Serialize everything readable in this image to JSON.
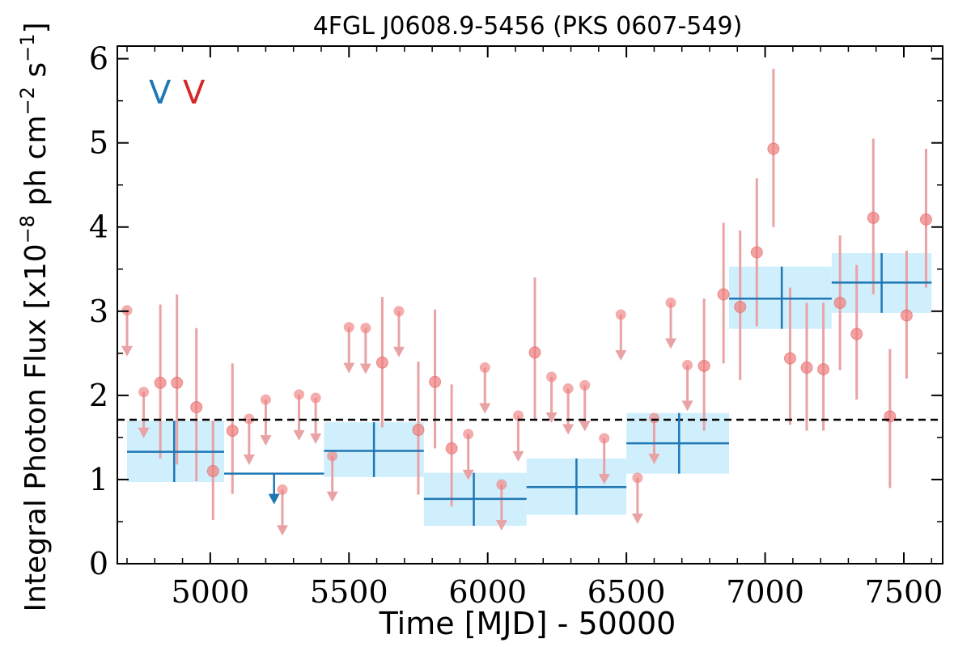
{
  "chart_data": {
    "type": "scatter",
    "title": "4FGL J0608.9-5456 (PKS 0607-549)",
    "xlabel": "Time [MJD] - 50000",
    "ylabel": "Integral Photon Flux [x10",
    "ylabel_exp": "−8",
    "ylabel_unit": " ph cm",
    "ylabel_exp2": "−2",
    "ylabel_unit2": " s",
    "ylabel_exp3": "−1",
    "ylabel_close": "]",
    "xlim": [
      4665,
      7640
    ],
    "ylim": [
      0,
      6.15
    ],
    "x_ticks": [
      5000,
      5500,
      6000,
      6500,
      7000,
      7500
    ],
    "y_ticks": [
      0,
      1,
      2,
      3,
      4,
      5,
      6
    ],
    "x_tick_labels": [
      "5000",
      "5500",
      "6000",
      "6500",
      "7000",
      "7500"
    ],
    "y_tick_labels": [
      "0",
      "1",
      "2",
      "3",
      "4",
      "5",
      "6"
    ],
    "grid": false,
    "legend_markers": [
      {
        "text": "V",
        "color": "#1f77b4"
      },
      {
        "text": "V",
        "color": "#d62728"
      }
    ],
    "mean_flux": 1.71,
    "colors": {
      "long_bins": "#1f77b4",
      "long_band": "#cdeefc",
      "short_bins": "#f08080",
      "short_bars": "#e9a3a5"
    },
    "series": [
      {
        "bins": [
          {
            "x": 4870,
            "x0": 4700,
            "x1": 5050,
            "y": 1.33,
            "lo": 0.97,
            "hi": 1.7,
            "ul": false
          },
          {
            "x": 5230,
            "x0": 5050,
            "x1": 5410,
            "y": 1.07,
            "ul": true
          },
          {
            "x": 5590,
            "x0": 5410,
            "x1": 5770,
            "y": 1.34,
            "lo": 1.03,
            "hi": 1.68,
            "ul": false
          },
          {
            "x": 5950,
            "x0": 5770,
            "x1": 6140,
            "y": 0.77,
            "lo": 0.45,
            "hi": 1.08,
            "ul": false
          },
          {
            "x": 6320,
            "x0": 6140,
            "x1": 6500,
            "y": 0.91,
            "lo": 0.58,
            "hi": 1.25,
            "ul": false
          },
          {
            "x": 6690,
            "x0": 6500,
            "x1": 6870,
            "y": 1.43,
            "lo": 1.07,
            "hi": 1.79,
            "ul": false
          },
          {
            "x": 7060,
            "x0": 6870,
            "x1": 7240,
            "y": 3.15,
            "lo": 2.79,
            "hi": 3.53,
            "ul": false
          },
          {
            "x": 7420,
            "x0": 7240,
            "x1": 7600,
            "y": 3.34,
            "lo": 2.98,
            "hi": 3.69,
            "ul": false
          }
        ]
      },
      {
        "points": [
          {
            "x": 4700,
            "y": 3.01,
            "ul": true
          },
          {
            "x": 4760,
            "y": 2.04,
            "ul": true
          },
          {
            "x": 4820,
            "y": 2.15,
            "lo": 1.25,
            "hi": 3.08,
            "ul": false
          },
          {
            "x": 4880,
            "y": 2.15,
            "lo": 1.18,
            "hi": 3.2,
            "ul": false
          },
          {
            "x": 4950,
            "y": 1.86,
            "lo": 0.98,
            "hi": 2.8,
            "ul": false
          },
          {
            "x": 5010,
            "y": 1.1,
            "lo": 0.52,
            "hi": 1.7,
            "ul": false
          },
          {
            "x": 5080,
            "y": 1.58,
            "lo": 0.83,
            "hi": 2.38,
            "ul": false
          },
          {
            "x": 5140,
            "y": 1.72,
            "ul": true
          },
          {
            "x": 5200,
            "y": 1.95,
            "ul": true
          },
          {
            "x": 5260,
            "y": 0.88,
            "ul": true
          },
          {
            "x": 5320,
            "y": 2.01,
            "ul": true
          },
          {
            "x": 5380,
            "y": 1.97,
            "ul": true
          },
          {
            "x": 5440,
            "y": 1.28,
            "ul": true
          },
          {
            "x": 5500,
            "y": 2.81,
            "ul": true
          },
          {
            "x": 5560,
            "y": 2.8,
            "ul": true
          },
          {
            "x": 5620,
            "y": 2.39,
            "lo": 1.62,
            "hi": 3.17,
            "ul": false
          },
          {
            "x": 5680,
            "y": 3.0,
            "ul": true
          },
          {
            "x": 5750,
            "y": 1.59,
            "lo": 0.82,
            "hi": 2.4,
            "ul": false
          },
          {
            "x": 5810,
            "y": 2.16,
            "lo": 1.37,
            "hi": 3.02,
            "ul": false
          },
          {
            "x": 5870,
            "y": 1.37,
            "lo": 0.68,
            "hi": 2.13,
            "ul": false
          },
          {
            "x": 5930,
            "y": 1.54,
            "ul": true
          },
          {
            "x": 5990,
            "y": 2.33,
            "ul": true
          },
          {
            "x": 6050,
            "y": 0.94,
            "ul": true
          },
          {
            "x": 6110,
            "y": 1.76,
            "ul": true
          },
          {
            "x": 6170,
            "y": 2.51,
            "lo": 1.7,
            "hi": 3.4,
            "ul": false
          },
          {
            "x": 6230,
            "y": 2.22,
            "ul": true
          },
          {
            "x": 6290,
            "y": 2.08,
            "ul": true
          },
          {
            "x": 6350,
            "y": 2.12,
            "ul": true
          },
          {
            "x": 6420,
            "y": 1.49,
            "ul": true
          },
          {
            "x": 6480,
            "y": 2.96,
            "ul": true
          },
          {
            "x": 6540,
            "y": 1.02,
            "ul": true
          },
          {
            "x": 6600,
            "y": 1.73,
            "ul": true
          },
          {
            "x": 6660,
            "y": 3.1,
            "ul": true
          },
          {
            "x": 6720,
            "y": 2.36,
            "ul": true
          },
          {
            "x": 6780,
            "y": 2.35,
            "lo": 1.58,
            "hi": 3.15,
            "ul": false
          },
          {
            "x": 6850,
            "y": 3.2,
            "lo": 2.38,
            "hi": 4.05,
            "ul": false
          },
          {
            "x": 6910,
            "y": 3.05,
            "lo": 2.18,
            "hi": 3.96,
            "ul": false
          },
          {
            "x": 6970,
            "y": 3.7,
            "lo": 2.82,
            "hi": 4.58,
            "ul": false
          },
          {
            "x": 7030,
            "y": 4.93,
            "lo": 4.0,
            "hi": 5.88,
            "ul": false
          },
          {
            "x": 7090,
            "y": 2.44,
            "lo": 1.65,
            "hi": 3.28,
            "ul": false
          },
          {
            "x": 7150,
            "y": 2.33,
            "lo": 1.58,
            "hi": 3.1,
            "ul": false
          },
          {
            "x": 7210,
            "y": 2.31,
            "lo": 1.58,
            "hi": 3.1,
            "ul": false
          },
          {
            "x": 7270,
            "y": 3.1,
            "lo": 2.3,
            "hi": 3.9,
            "ul": false
          },
          {
            "x": 7330,
            "y": 2.73,
            "lo": 1.95,
            "hi": 3.55,
            "ul": false
          },
          {
            "x": 7390,
            "y": 4.11,
            "lo": 3.2,
            "hi": 5.05,
            "ul": false
          },
          {
            "x": 7450,
            "y": 1.75,
            "lo": 0.9,
            "hi": 2.55,
            "ul": false
          },
          {
            "x": 7510,
            "y": 2.95,
            "lo": 2.2,
            "hi": 3.72,
            "ul": false
          },
          {
            "x": 7580,
            "y": 4.09,
            "lo": 3.28,
            "hi": 4.93,
            "ul": false
          }
        ]
      }
    ]
  }
}
